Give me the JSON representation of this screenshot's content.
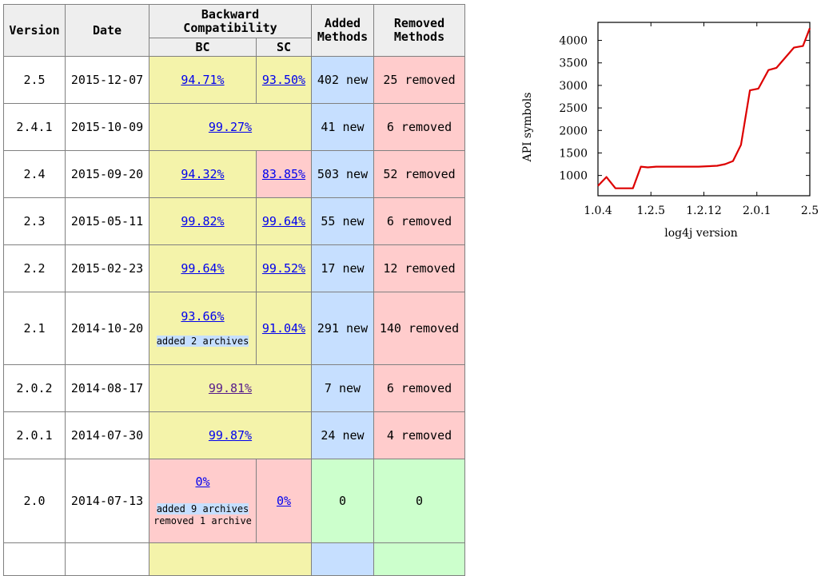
{
  "table": {
    "headers": {
      "version": "Version",
      "date": "Date",
      "backward_compatibility": "Backward Compatibility",
      "bc": "BC",
      "sc": "SC",
      "added_methods": "Added Methods",
      "removed_methods": "Removed Methods"
    },
    "rows": [
      {
        "version": "2.5",
        "date": "2015-12-07",
        "bc": "94.71%",
        "sc": "93.50%",
        "added": "402 new",
        "removed": "25 removed"
      },
      {
        "version": "2.4.1",
        "date": "2015-10-09",
        "bc_merged": "99.27%",
        "added": "41 new",
        "removed": "6 removed"
      },
      {
        "version": "2.4",
        "date": "2015-09-20",
        "bc": "94.32%",
        "sc": "83.85%",
        "added": "503 new",
        "removed": "52 removed"
      },
      {
        "version": "2.3",
        "date": "2015-05-11",
        "bc": "99.82%",
        "sc": "99.64%",
        "added": "55 new",
        "removed": "6 removed"
      },
      {
        "version": "2.2",
        "date": "2015-02-23",
        "bc": "99.64%",
        "sc": "99.52%",
        "added": "17 new",
        "removed": "12 removed"
      },
      {
        "version": "2.1",
        "date": "2014-10-20",
        "bc": "93.66%",
        "bc_note_added": "added 2 archives",
        "sc": "91.04%",
        "added": "291 new",
        "removed": "140 removed"
      },
      {
        "version": "2.0.2",
        "date": "2014-08-17",
        "bc_merged": "99.81%",
        "added": "7 new",
        "removed": "6 removed"
      },
      {
        "version": "2.0.1",
        "date": "2014-07-30",
        "bc_merged": "99.87%",
        "added": "24 new",
        "removed": "4 removed"
      },
      {
        "version": "2.0",
        "date": "2014-07-13",
        "bc": "0%",
        "bc_note_added": "added 9 archives",
        "bc_note_removed": "removed 1 archive",
        "sc": "0%",
        "added": "0",
        "removed": "0"
      }
    ]
  },
  "colors": {
    "header_bg": "#eeeeee",
    "compat_ok": "#f4f3aa",
    "compat_bad": "#ffcccc",
    "added_bg": "#c6dfff",
    "removed_bg": "#ffcccc",
    "zero_bg": "#ccffcc",
    "line": "#dd0000",
    "link": "#0000ee",
    "link_visited": "#551a8b"
  },
  "chart_data": {
    "type": "line",
    "title": "",
    "xlabel": "log4j version",
    "ylabel": "API symbols",
    "x_tick_labels": [
      "1.0.4",
      "1.2.5",
      "1.2.12",
      "2.0.1",
      "2.5"
    ],
    "y_ticks": [
      1000,
      1500,
      2000,
      2500,
      3000,
      3500,
      4000
    ],
    "y_tick_labels": [
      "1000",
      "1500",
      "2000",
      "2500",
      "3000",
      "3500",
      "4000"
    ],
    "ylim": [
      550,
      4400
    ],
    "grid": false,
    "series": [
      {
        "name": "API symbols",
        "x_index": [
          0,
          0.16,
          0.33,
          0.66,
          0.81,
          0.94,
          1.1,
          1.9,
          2.25,
          2.4,
          2.55,
          2.7,
          2.87,
          3.03,
          3.22,
          3.37,
          3.7,
          3.87,
          4.0
        ],
        "values": [
          770,
          965,
          715,
          715,
          1195,
          1180,
          1195,
          1195,
          1215,
          1250,
          1320,
          1680,
          2890,
          2930,
          3340,
          3390,
          3840,
          3875,
          4270
        ]
      }
    ]
  }
}
